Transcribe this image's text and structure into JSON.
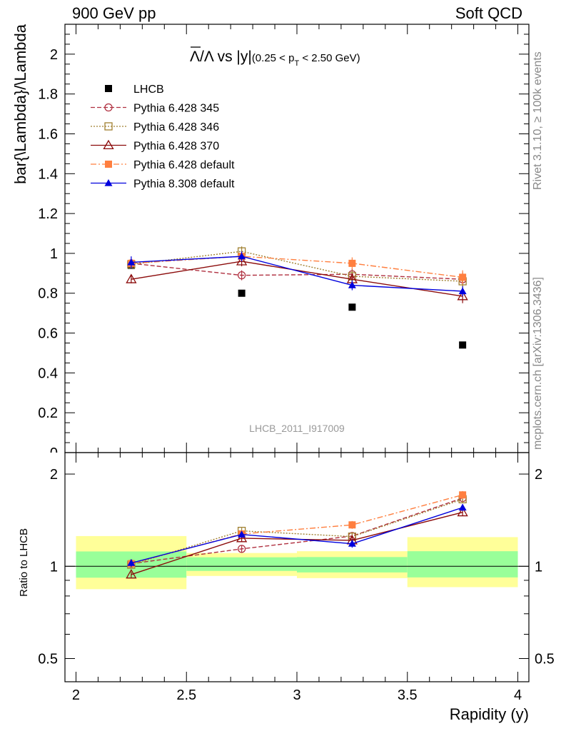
{
  "header": {
    "left": "900 GeV pp",
    "right": "Soft QCD"
  },
  "side_labels": {
    "rivet": "Rivet 3.1.10, ≥ 100k events",
    "mcplots": "mcplots.cern.ch [arXiv:1306.3436]"
  },
  "colors": {
    "band_inner": "#99ff99",
    "band_outer": "#ffff99",
    "watermark": "#999999"
  },
  "chart_data": [
    {
      "type": "scatter",
      "title_parts": {
        "main": "Λ/Λ vs |y|",
        "sub_pre": "(0.25 < p",
        "sub_idx": "T",
        "sub_post": " < 2.50 GeV)"
      },
      "ylabel": "bar{\\Lambda}/\\Lambda",
      "ylim": [
        0,
        2.15
      ],
      "yticks": [
        "0.2",
        "0.4",
        "0.6",
        "0.8",
        "1",
        "1.2",
        "1.4",
        "1.6",
        "1.8",
        "2"
      ],
      "watermark": "LHCB_2011_I917009",
      "legend_position": "top-left",
      "x": [
        2.25,
        2.75,
        3.25,
        3.75
      ],
      "series": [
        {
          "name": "LHCB",
          "color": "#000000",
          "marker": "square-filled",
          "line": "none",
          "values": [
            0.94,
            0.8,
            0.73,
            0.54
          ],
          "errors": [
            0.01,
            0.01,
            0.01,
            0.01
          ]
        },
        {
          "name": "Pythia 6.428 345",
          "color": "#b03040",
          "marker": "circle-open",
          "line": "dashed",
          "values": [
            0.95,
            0.89,
            0.895,
            0.87
          ],
          "errors": [
            0.02,
            0.025,
            0.03,
            0.035
          ]
        },
        {
          "name": "Pythia 6.428 346",
          "color": "#a08030",
          "marker": "square-open",
          "line": "dotted",
          "values": [
            0.945,
            1.01,
            0.885,
            0.86
          ],
          "errors": [
            0.02,
            0.025,
            0.03,
            0.035
          ]
        },
        {
          "name": "Pythia 6.428 370",
          "color": "#8b0a0a",
          "marker": "triangle-open",
          "line": "solid",
          "values": [
            0.87,
            0.96,
            0.87,
            0.785
          ],
          "errors": [
            0.02,
            0.025,
            0.03,
            0.035
          ]
        },
        {
          "name": "Pythia 6.428 default",
          "color": "#ff7f3f",
          "marker": "square-filled",
          "line": "dashdot",
          "values": [
            0.95,
            0.985,
            0.95,
            0.88
          ],
          "errors": [
            0.02,
            0.025,
            0.03,
            0.035
          ]
        },
        {
          "name": "Pythia 8.308 default",
          "color": "#0000dd",
          "marker": "triangle-filled",
          "line": "solid",
          "values": [
            0.955,
            0.985,
            0.84,
            0.81
          ],
          "errors": [
            0.03,
            0.025,
            0.025,
            0.025
          ]
        }
      ]
    },
    {
      "type": "scatter",
      "xlabel": "Rapidity (y)",
      "ylabel": "Ratio to LHCB",
      "yscale": "log",
      "ylim": [
        0.42,
        2.35
      ],
      "yticks": [
        "0.5",
        "1",
        "2"
      ],
      "xlim": [
        1.95,
        4.05
      ],
      "xticks": [
        "2",
        "2.5",
        "3",
        "3.5",
        "4"
      ],
      "reference_bands": [
        {
          "xmin": 2.0,
          "xmax": 2.5,
          "inner": [
            0.918,
            1.118
          ],
          "outer": [
            0.842,
            1.255
          ]
        },
        {
          "xmin": 2.5,
          "xmax": 3.0,
          "inner": [
            0.966,
            1.07
          ],
          "outer": [
            0.93,
            1.105
          ]
        },
        {
          "xmin": 3.0,
          "xmax": 3.5,
          "inner": [
            0.955,
            1.072
          ],
          "outer": [
            0.915,
            1.12
          ]
        },
        {
          "xmin": 3.5,
          "xmax": 4.0,
          "inner": [
            0.92,
            1.12
          ],
          "outer": [
            0.855,
            1.245
          ]
        }
      ],
      "x": [
        2.25,
        2.75,
        3.25,
        3.75
      ],
      "series": [
        {
          "name": "Pythia 6.428 345",
          "values": [
            1.02,
            1.14,
            1.255,
            1.67
          ],
          "errors": [
            0.02,
            0.03,
            0.035,
            0.04
          ]
        },
        {
          "name": "Pythia 6.428 346",
          "values": [
            1.012,
            1.305,
            1.25,
            1.655
          ],
          "errors": [
            0.02,
            0.03,
            0.035,
            0.04
          ]
        },
        {
          "name": "Pythia 6.428 370",
          "values": [
            0.94,
            1.235,
            1.215,
            1.5
          ],
          "errors": [
            0.02,
            0.03,
            0.035,
            0.04
          ]
        },
        {
          "name": "Pythia 6.428 default",
          "values": [
            1.02,
            1.275,
            1.365,
            1.71
          ],
          "errors": [
            0.02,
            0.03,
            0.04,
            0.05
          ]
        },
        {
          "name": "Pythia 8.308 default",
          "values": [
            1.025,
            1.27,
            1.185,
            1.555
          ],
          "errors": [
            0.03,
            0.03,
            0.035,
            0.04
          ]
        }
      ]
    }
  ]
}
